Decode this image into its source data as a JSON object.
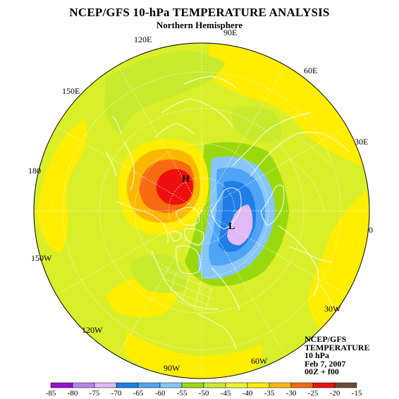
{
  "title": "NCEP/GFS 10-hPa TEMPERATURE ANALYSIS",
  "subtitle": "Northern Hemisphere",
  "longitude_labels": [
    "90E",
    "60E",
    "30E",
    "0",
    "30W",
    "60W",
    "90W",
    "120W",
    "150W",
    "180",
    "150E",
    "120E"
  ],
  "centers": {
    "high": "H",
    "low": "L"
  },
  "info": {
    "line1": "NCEP/GFS",
    "line2": "TEMPERATURE",
    "line3": "10 hPa",
    "line4": "Feb 7, 2007",
    "line5": "00Z + f00"
  },
  "colorbar": {
    "ticks": [
      "-85",
      "-80",
      "-75",
      "-70",
      "-65",
      "-60",
      "-55",
      "-50",
      "-45",
      "-40",
      "-35",
      "-30",
      "-25",
      "-20",
      "-15"
    ],
    "colors": [
      "#9a0fd0",
      "#b784ee",
      "#e2b8f5",
      "#1f7fe6",
      "#4fa4f6",
      "#88c6f8",
      "#9bd90f",
      "#c8eb2e",
      "#ecf62a",
      "#ffee00",
      "#fcb800",
      "#f76a0f",
      "#ee0f0f",
      "#6b4a3a"
    ]
  },
  "colors": {
    "background": "#ffffff",
    "base_field": "#d9ef2a",
    "coastline": "#ffffff"
  }
}
